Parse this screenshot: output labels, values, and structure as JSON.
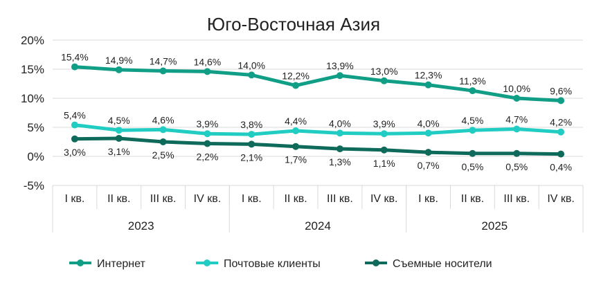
{
  "chart_data": {
    "type": "line",
    "title": "Юго-Восточная Азия",
    "xlabel": "",
    "ylabel": "",
    "ylim": [
      -5,
      20
    ],
    "yticks": [
      "20%",
      "15%",
      "10%",
      "5%",
      "0%",
      "-5%"
    ],
    "ytick_values": [
      20,
      15,
      10,
      5,
      0,
      -5
    ],
    "grid": "horizontal",
    "legend_position": "bottom",
    "categories": [
      "I кв.",
      "II кв.",
      "III кв.",
      "IV кв.",
      "I кв.",
      "II кв.",
      "III кв.",
      "IV кв.",
      "I кв.",
      "II кв.",
      "III кв.",
      "IV кв."
    ],
    "groups": [
      {
        "label": "2023",
        "count": 4
      },
      {
        "label": "2024",
        "count": 4
      },
      {
        "label": "2025",
        "count": 4
      }
    ],
    "series": [
      {
        "name": "Интернет",
        "color": "#119e86",
        "values": [
          15.4,
          14.9,
          14.7,
          14.6,
          14.0,
          12.2,
          13.9,
          13.0,
          12.3,
          11.3,
          10.0,
          9.6
        ],
        "labels": [
          "15,4%",
          "14,9%",
          "14,7%",
          "14,6%",
          "14,0%",
          "12,2%",
          "13,9%",
          "13,0%",
          "12,3%",
          "11,3%",
          "10,0%",
          "9,6%"
        ],
        "label_position": "above"
      },
      {
        "name": "Почтовые клиенты",
        "color": "#21cdc2",
        "values": [
          5.4,
          4.5,
          4.6,
          3.9,
          3.8,
          4.4,
          4.0,
          3.9,
          4.0,
          4.5,
          4.7,
          4.2
        ],
        "labels": [
          "5,4%",
          "4,5%",
          "4,6%",
          "3,9%",
          "3,8%",
          "4,4%",
          "4,0%",
          "3,9%",
          "4,0%",
          "4,5%",
          "4,7%",
          "4,2%"
        ],
        "label_position": "above"
      },
      {
        "name": "Съемные носители",
        "color": "#0e6a5a",
        "values": [
          3.0,
          3.1,
          2.5,
          2.2,
          2.1,
          1.7,
          1.3,
          1.1,
          0.7,
          0.5,
          0.5,
          0.4
        ],
        "labels": [
          "3,0%",
          "3,1%",
          "2,5%",
          "2,2%",
          "2,1%",
          "1,7%",
          "1,3%",
          "1,1%",
          "0,7%",
          "0,5%",
          "0,5%",
          "0,4%"
        ],
        "label_position": "below"
      }
    ]
  }
}
